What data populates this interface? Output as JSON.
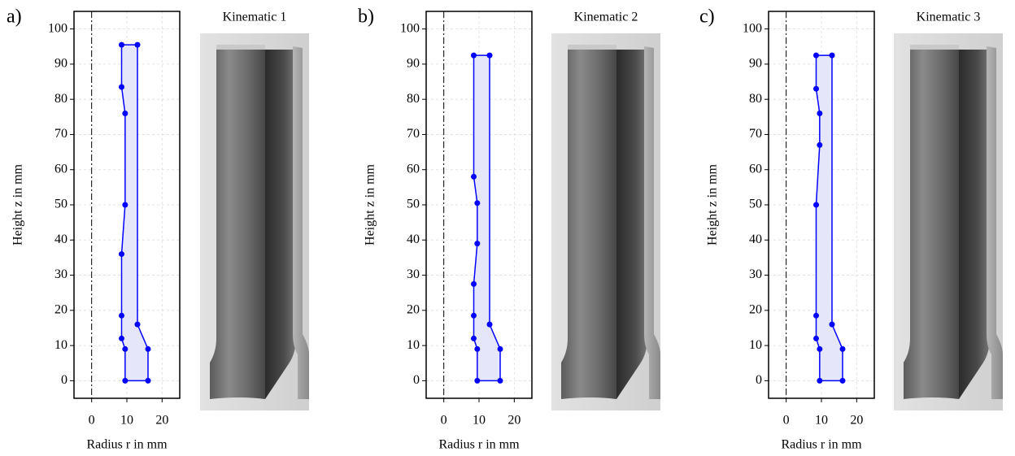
{
  "chart_data": [
    {
      "type": "line",
      "panel_label": "a)",
      "title": "Kinematic 1",
      "xlabel": "Radius r in mm",
      "ylabel": "Height z in mm",
      "x": [
        9.5,
        16,
        16,
        13,
        13,
        8.5,
        8.5,
        9.5,
        9.5,
        8.5,
        8.5,
        8.5,
        9.5
      ],
      "values": [
        0,
        0,
        9,
        16,
        95.5,
        95.5,
        83.5,
        76,
        50,
        36,
        18.5,
        12,
        9
      ],
      "color": "#0000ff",
      "fill": "#e6e6fa",
      "centerline": 0,
      "xlim": [
        -5,
        25
      ],
      "ylim": [
        -5,
        105
      ],
      "xticks": [
        0,
        10,
        20
      ],
      "yticks": [
        0,
        10,
        20,
        30,
        40,
        50,
        60,
        70,
        80,
        90,
        100
      ],
      "grid": true
    },
    {
      "type": "line",
      "panel_label": "b)",
      "title": "Kinematic 2",
      "xlabel": "Radius r in mm",
      "ylabel": "Height z in mm",
      "x": [
        9.5,
        16,
        16,
        13,
        13,
        8.5,
        8.5,
        9.5,
        9.5,
        8.5,
        8.5,
        8.5,
        9.5
      ],
      "values": [
        0,
        0,
        9,
        16,
        92.5,
        92.5,
        58,
        50.5,
        39,
        27.5,
        18.5,
        12,
        9
      ],
      "color": "#0000ff",
      "fill": "#e6e6fa",
      "centerline": 0,
      "xlim": [
        -5,
        25
      ],
      "ylim": [
        -5,
        105
      ],
      "xticks": [
        0,
        10,
        20
      ],
      "yticks": [
        0,
        10,
        20,
        30,
        40,
        50,
        60,
        70,
        80,
        90,
        100
      ],
      "grid": true
    },
    {
      "type": "line",
      "panel_label": "c)",
      "title": "Kinematic 3",
      "xlabel": "Radius r in mm",
      "ylabel": "Height z in mm",
      "x": [
        9.5,
        16,
        16,
        13,
        13,
        8.5,
        8.5,
        9.5,
        9.5,
        8.5,
        8.5,
        8.5,
        9.5
      ],
      "values": [
        0,
        0,
        9,
        16,
        92.5,
        92.5,
        83,
        76,
        67,
        50,
        18.5,
        12,
        9
      ],
      "color": "#0000ff",
      "fill": "#e6e6fa",
      "centerline": 0,
      "xlim": [
        -5,
        25
      ],
      "ylim": [
        -5,
        105
      ],
      "xticks": [
        0,
        10,
        20
      ],
      "yticks": [
        0,
        10,
        20,
        30,
        40,
        50,
        60,
        70,
        80,
        90,
        100
      ],
      "grid": true
    }
  ]
}
